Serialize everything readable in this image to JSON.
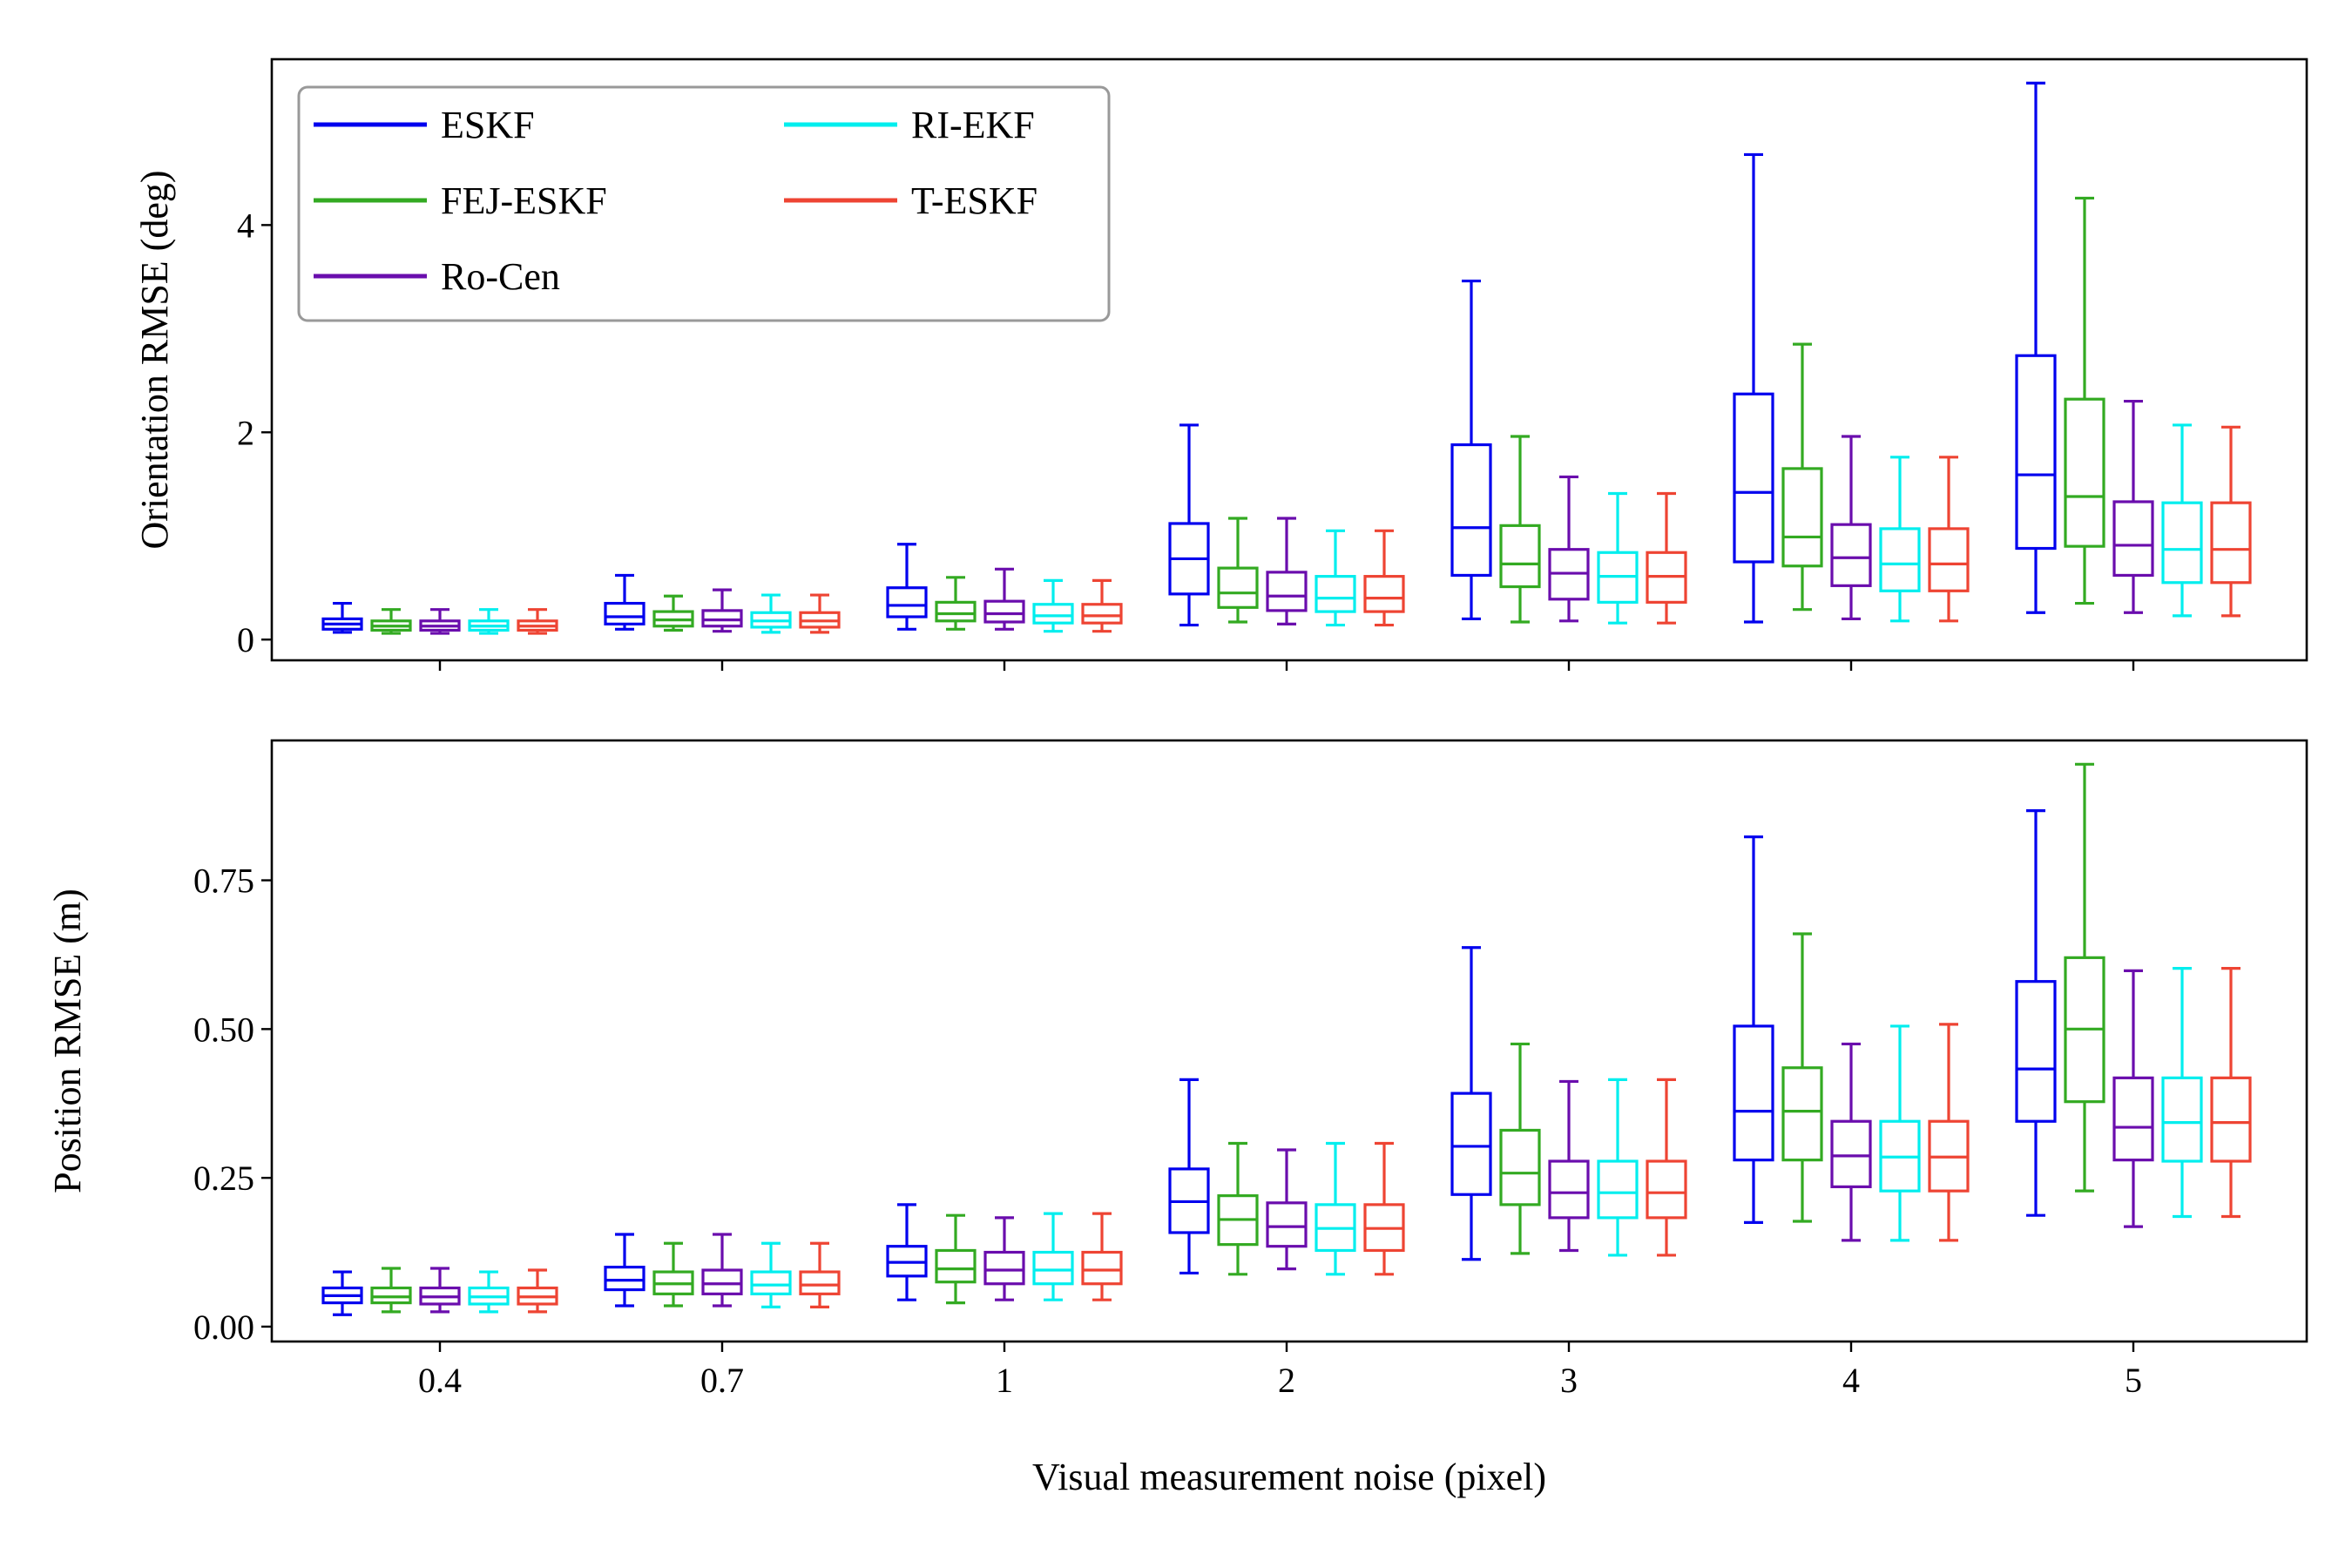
{
  "chart_data": [
    {
      "type": "box",
      "panel": "top",
      "xlabel": "",
      "ylabel": "Orientation RMSE (deg)",
      "ylim": [
        -0.2,
        5.6
      ],
      "yticks": [
        0,
        2,
        4
      ],
      "ytick_labels": [
        "0",
        "2",
        "4"
      ],
      "categories": [
        "0.4",
        "0.7",
        "1",
        "2",
        "3",
        "4",
        "5"
      ],
      "series": [
        {
          "name": "ESKF",
          "color": "#0000ee",
          "boxes": [
            {
              "whislo": 0.07,
              "q1": 0.1,
              "med": 0.15,
              "q3": 0.2,
              "whishi": 0.35
            },
            {
              "whislo": 0.1,
              "q1": 0.15,
              "med": 0.22,
              "q3": 0.35,
              "whishi": 0.62
            },
            {
              "whislo": 0.1,
              "q1": 0.22,
              "med": 0.33,
              "q3": 0.5,
              "whishi": 0.92
            },
            {
              "whislo": 0.14,
              "q1": 0.44,
              "med": 0.78,
              "q3": 1.12,
              "whishi": 2.07
            },
            {
              "whislo": 0.2,
              "q1": 0.62,
              "med": 1.08,
              "q3": 1.88,
              "whishi": 3.46
            },
            {
              "whislo": 0.17,
              "q1": 0.75,
              "med": 1.42,
              "q3": 2.37,
              "whishi": 4.68
            },
            {
              "whislo": 0.26,
              "q1": 0.88,
              "med": 1.59,
              "q3": 2.74,
              "whishi": 5.37
            }
          ]
        },
        {
          "name": "FEJ-ESKF",
          "color": "#33aa22",
          "boxes": [
            {
              "whislo": 0.06,
              "q1": 0.09,
              "med": 0.13,
              "q3": 0.18,
              "whishi": 0.29
            },
            {
              "whislo": 0.09,
              "q1": 0.13,
              "med": 0.19,
              "q3": 0.27,
              "whishi": 0.42
            },
            {
              "whislo": 0.1,
              "q1": 0.18,
              "med": 0.25,
              "q3": 0.36,
              "whishi": 0.6
            },
            {
              "whislo": 0.17,
              "q1": 0.31,
              "med": 0.45,
              "q3": 0.69,
              "whishi": 1.17
            },
            {
              "whislo": 0.17,
              "q1": 0.51,
              "med": 0.73,
              "q3": 1.1,
              "whishi": 1.96
            },
            {
              "whislo": 0.29,
              "q1": 0.71,
              "med": 0.99,
              "q3": 1.65,
              "whishi": 2.85
            },
            {
              "whislo": 0.35,
              "q1": 0.9,
              "med": 1.38,
              "q3": 2.32,
              "whishi": 4.26
            }
          ]
        },
        {
          "name": "Ro-Cen",
          "color": "#6a0dad",
          "boxes": [
            {
              "whislo": 0.06,
              "q1": 0.09,
              "med": 0.13,
              "q3": 0.18,
              "whishi": 0.29
            },
            {
              "whislo": 0.08,
              "q1": 0.13,
              "med": 0.19,
              "q3": 0.28,
              "whishi": 0.48
            },
            {
              "whislo": 0.1,
              "q1": 0.17,
              "med": 0.25,
              "q3": 0.37,
              "whishi": 0.68
            },
            {
              "whislo": 0.15,
              "q1": 0.28,
              "med": 0.42,
              "q3": 0.65,
              "whishi": 1.17
            },
            {
              "whislo": 0.18,
              "q1": 0.39,
              "med": 0.64,
              "q3": 0.87,
              "whishi": 1.57
            },
            {
              "whislo": 0.2,
              "q1": 0.52,
              "med": 0.79,
              "q3": 1.11,
              "whishi": 1.96
            },
            {
              "whislo": 0.26,
              "q1": 0.62,
              "med": 0.91,
              "q3": 1.33,
              "whishi": 2.3
            }
          ]
        },
        {
          "name": "RI-EKF",
          "color": "#00eeee",
          "boxes": [
            {
              "whislo": 0.06,
              "q1": 0.09,
              "med": 0.13,
              "q3": 0.18,
              "whishi": 0.29
            },
            {
              "whislo": 0.07,
              "q1": 0.12,
              "med": 0.18,
              "q3": 0.26,
              "whishi": 0.43
            },
            {
              "whislo": 0.08,
              "q1": 0.16,
              "med": 0.23,
              "q3": 0.34,
              "whishi": 0.57
            },
            {
              "whislo": 0.14,
              "q1": 0.27,
              "med": 0.4,
              "q3": 0.61,
              "whishi": 1.05
            },
            {
              "whislo": 0.16,
              "q1": 0.36,
              "med": 0.61,
              "q3": 0.84,
              "whishi": 1.41
            },
            {
              "whislo": 0.18,
              "q1": 0.47,
              "med": 0.73,
              "q3": 1.07,
              "whishi": 1.76
            },
            {
              "whislo": 0.23,
              "q1": 0.55,
              "med": 0.87,
              "q3": 1.32,
              "whishi": 2.07
            }
          ]
        },
        {
          "name": "T-ESKF",
          "color": "#ee4433",
          "boxes": [
            {
              "whislo": 0.06,
              "q1": 0.09,
              "med": 0.13,
              "q3": 0.18,
              "whishi": 0.29
            },
            {
              "whislo": 0.07,
              "q1": 0.12,
              "med": 0.18,
              "q3": 0.26,
              "whishi": 0.43
            },
            {
              "whislo": 0.08,
              "q1": 0.16,
              "med": 0.23,
              "q3": 0.34,
              "whishi": 0.57
            },
            {
              "whislo": 0.14,
              "q1": 0.27,
              "med": 0.4,
              "q3": 0.61,
              "whishi": 1.05
            },
            {
              "whislo": 0.16,
              "q1": 0.36,
              "med": 0.61,
              "q3": 0.84,
              "whishi": 1.41
            },
            {
              "whislo": 0.18,
              "q1": 0.47,
              "med": 0.73,
              "q3": 1.07,
              "whishi": 1.76
            },
            {
              "whislo": 0.23,
              "q1": 0.55,
              "med": 0.87,
              "q3": 1.32,
              "whishi": 2.05
            }
          ]
        }
      ]
    },
    {
      "type": "box",
      "panel": "bottom",
      "xlabel": "Visual measurement noise (pixel)",
      "ylabel": "Position RMSE (m)",
      "ylim": [
        -0.025,
        0.985
      ],
      "yticks": [
        0,
        0.25,
        0.5,
        0.75
      ],
      "ytick_labels": [
        "0.00",
        "0.25",
        "0.50",
        "0.75"
      ],
      "categories": [
        "0.4",
        "0.7",
        "1",
        "2",
        "3",
        "4",
        "5"
      ],
      "series": [
        {
          "name": "ESKF",
          "color": "#0000ee",
          "boxes": [
            {
              "whislo": 0.02,
              "q1": 0.04,
              "med": 0.052,
              "q3": 0.065,
              "whishi": 0.092
            },
            {
              "whislo": 0.035,
              "q1": 0.062,
              "med": 0.078,
              "q3": 0.1,
              "whishi": 0.155
            },
            {
              "whislo": 0.045,
              "q1": 0.085,
              "med": 0.108,
              "q3": 0.135,
              "whishi": 0.205
            },
            {
              "whislo": 0.09,
              "q1": 0.158,
              "med": 0.21,
              "q3": 0.265,
              "whishi": 0.415
            },
            {
              "whislo": 0.113,
              "q1": 0.222,
              "med": 0.303,
              "q3": 0.392,
              "whishi": 0.637
            },
            {
              "whislo": 0.175,
              "q1": 0.28,
              "med": 0.362,
              "q3": 0.505,
              "whishi": 0.823
            },
            {
              "whislo": 0.187,
              "q1": 0.345,
              "med": 0.433,
              "q3": 0.58,
              "whishi": 0.867
            }
          ]
        },
        {
          "name": "FEJ-ESKF",
          "color": "#33aa22",
          "boxes": [
            {
              "whislo": 0.025,
              "q1": 0.04,
              "med": 0.05,
              "q3": 0.065,
              "whishi": 0.098
            },
            {
              "whislo": 0.035,
              "q1": 0.055,
              "med": 0.072,
              "q3": 0.092,
              "whishi": 0.14
            },
            {
              "whislo": 0.04,
              "q1": 0.075,
              "med": 0.097,
              "q3": 0.128,
              "whishi": 0.187
            },
            {
              "whislo": 0.088,
              "q1": 0.138,
              "med": 0.18,
              "q3": 0.22,
              "whishi": 0.308
            },
            {
              "whislo": 0.123,
              "q1": 0.205,
              "med": 0.258,
              "q3": 0.33,
              "whishi": 0.475
            },
            {
              "whislo": 0.177,
              "q1": 0.28,
              "med": 0.362,
              "q3": 0.435,
              "whishi": 0.66
            },
            {
              "whislo": 0.228,
              "q1": 0.378,
              "med": 0.5,
              "q3": 0.62,
              "whishi": 0.945
            }
          ]
        },
        {
          "name": "Ro-Cen",
          "color": "#6a0dad",
          "boxes": [
            {
              "whislo": 0.025,
              "q1": 0.038,
              "med": 0.05,
              "q3": 0.065,
              "whishi": 0.098
            },
            {
              "whislo": 0.035,
              "q1": 0.055,
              "med": 0.072,
              "q3": 0.095,
              "whishi": 0.155
            },
            {
              "whislo": 0.045,
              "q1": 0.072,
              "med": 0.095,
              "q3": 0.125,
              "whishi": 0.183
            },
            {
              "whislo": 0.097,
              "q1": 0.135,
              "med": 0.168,
              "q3": 0.208,
              "whishi": 0.297
            },
            {
              "whislo": 0.128,
              "q1": 0.183,
              "med": 0.225,
              "q3": 0.278,
              "whishi": 0.412
            },
            {
              "whislo": 0.145,
              "q1": 0.235,
              "med": 0.287,
              "q3": 0.345,
              "whishi": 0.475
            },
            {
              "whislo": 0.168,
              "q1": 0.28,
              "med": 0.335,
              "q3": 0.418,
              "whishi": 0.598
            }
          ]
        },
        {
          "name": "RI-EKF",
          "color": "#00eeee",
          "boxes": [
            {
              "whislo": 0.025,
              "q1": 0.038,
              "med": 0.05,
              "q3": 0.065,
              "whishi": 0.092
            },
            {
              "whislo": 0.033,
              "q1": 0.055,
              "med": 0.07,
              "q3": 0.092,
              "whishi": 0.14
            },
            {
              "whislo": 0.045,
              "q1": 0.072,
              "med": 0.095,
              "q3": 0.125,
              "whishi": 0.19
            },
            {
              "whislo": 0.088,
              "q1": 0.128,
              "med": 0.165,
              "q3": 0.205,
              "whishi": 0.308
            },
            {
              "whislo": 0.12,
              "q1": 0.183,
              "med": 0.225,
              "q3": 0.278,
              "whishi": 0.415
            },
            {
              "whislo": 0.145,
              "q1": 0.228,
              "med": 0.285,
              "q3": 0.345,
              "whishi": 0.505
            },
            {
              "whislo": 0.185,
              "q1": 0.278,
              "med": 0.343,
              "q3": 0.418,
              "whishi": 0.602
            }
          ]
        },
        {
          "name": "T-ESKF",
          "color": "#ee4433",
          "boxes": [
            {
              "whislo": 0.025,
              "q1": 0.038,
              "med": 0.05,
              "q3": 0.065,
              "whishi": 0.095
            },
            {
              "whislo": 0.033,
              "q1": 0.055,
              "med": 0.07,
              "q3": 0.092,
              "whishi": 0.14
            },
            {
              "whislo": 0.045,
              "q1": 0.072,
              "med": 0.095,
              "q3": 0.125,
              "whishi": 0.19
            },
            {
              "whislo": 0.088,
              "q1": 0.128,
              "med": 0.165,
              "q3": 0.205,
              "whishi": 0.308
            },
            {
              "whislo": 0.12,
              "q1": 0.183,
              "med": 0.225,
              "q3": 0.278,
              "whishi": 0.415
            },
            {
              "whislo": 0.145,
              "q1": 0.228,
              "med": 0.285,
              "q3": 0.345,
              "whishi": 0.508
            },
            {
              "whislo": 0.185,
              "q1": 0.278,
              "med": 0.343,
              "q3": 0.418,
              "whishi": 0.602
            }
          ]
        }
      ]
    }
  ],
  "legend": {
    "placement": "top-left of upper panel",
    "columns": 2,
    "entries": [
      {
        "label": "ESKF",
        "color": "#0000ee"
      },
      {
        "label": "FEJ-ESKF",
        "color": "#33aa22"
      },
      {
        "label": "Ro-Cen",
        "color": "#6a0dad"
      },
      {
        "label": "RI-EKF",
        "color": "#00eeee"
      },
      {
        "label": "T-ESKF",
        "color": "#ee4433"
      }
    ]
  }
}
